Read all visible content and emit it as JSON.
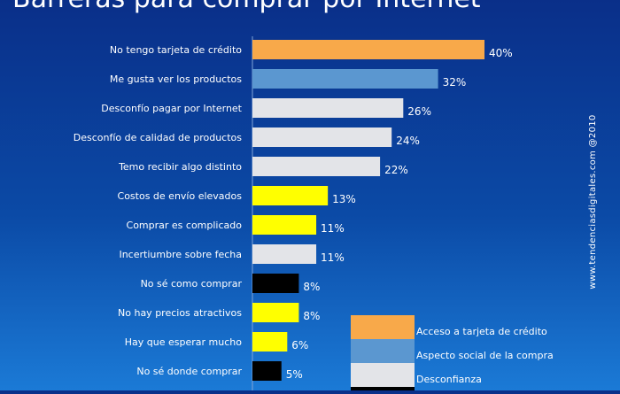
{
  "title": "Barreras para comprar por Internet",
  "watermark": "www.tendenciasdigitales.com @2010",
  "colors": {
    "background_top": "#0a2f89",
    "background_bottom": "#1b7ad6",
    "credit_access": "#f8a94a",
    "social_aspect": "#5b97d0",
    "distrust": "#e3e4e8",
    "yellow": "#ffff00",
    "black": "#000000"
  },
  "legend": [
    {
      "label": "Acceso a tarjeta de crédito",
      "color": "#f8a94a"
    },
    {
      "label": "Aspecto social de la compra",
      "color": "#5b97d0"
    },
    {
      "label": "Desconfianza",
      "color": "#e3e4e8"
    },
    {
      "label": "",
      "color": "#000000"
    }
  ],
  "chart_data": {
    "type": "bar",
    "orientation": "horizontal",
    "categories": [
      "No tengo tarjeta de crédito",
      "Me gusta ver los productos",
      "Desconfío pagar por Internet",
      "Desconfío de calidad de productos",
      "Temo recibir algo distinto",
      "Costos de envío elevados",
      "Comprar es complicado",
      "Incertiumbre sobre fecha",
      "No sé como comprar",
      "No hay precios atractivos",
      "Hay que esperar mucho",
      "No sé donde comprar"
    ],
    "values": [
      40,
      32,
      26,
      24,
      22,
      13,
      11,
      11,
      8,
      8,
      6,
      5
    ],
    "value_labels": [
      "40%",
      "32%",
      "26%",
      "24%",
      "22%",
      "13%",
      "11%",
      "11%",
      "8%",
      "8%",
      "6%",
      "5%"
    ],
    "bar_colors": [
      "#f8a94a",
      "#5b97d0",
      "#e3e4e8",
      "#e3e4e8",
      "#e3e4e8",
      "#ffff00",
      "#ffff00",
      "#e3e4e8",
      "#000000",
      "#ffff00",
      "#ffff00",
      "#000000"
    ],
    "xlim": [
      0,
      40
    ],
    "grid": false,
    "legend_position": "bottom-right",
    "xlabel": "",
    "ylabel": ""
  }
}
